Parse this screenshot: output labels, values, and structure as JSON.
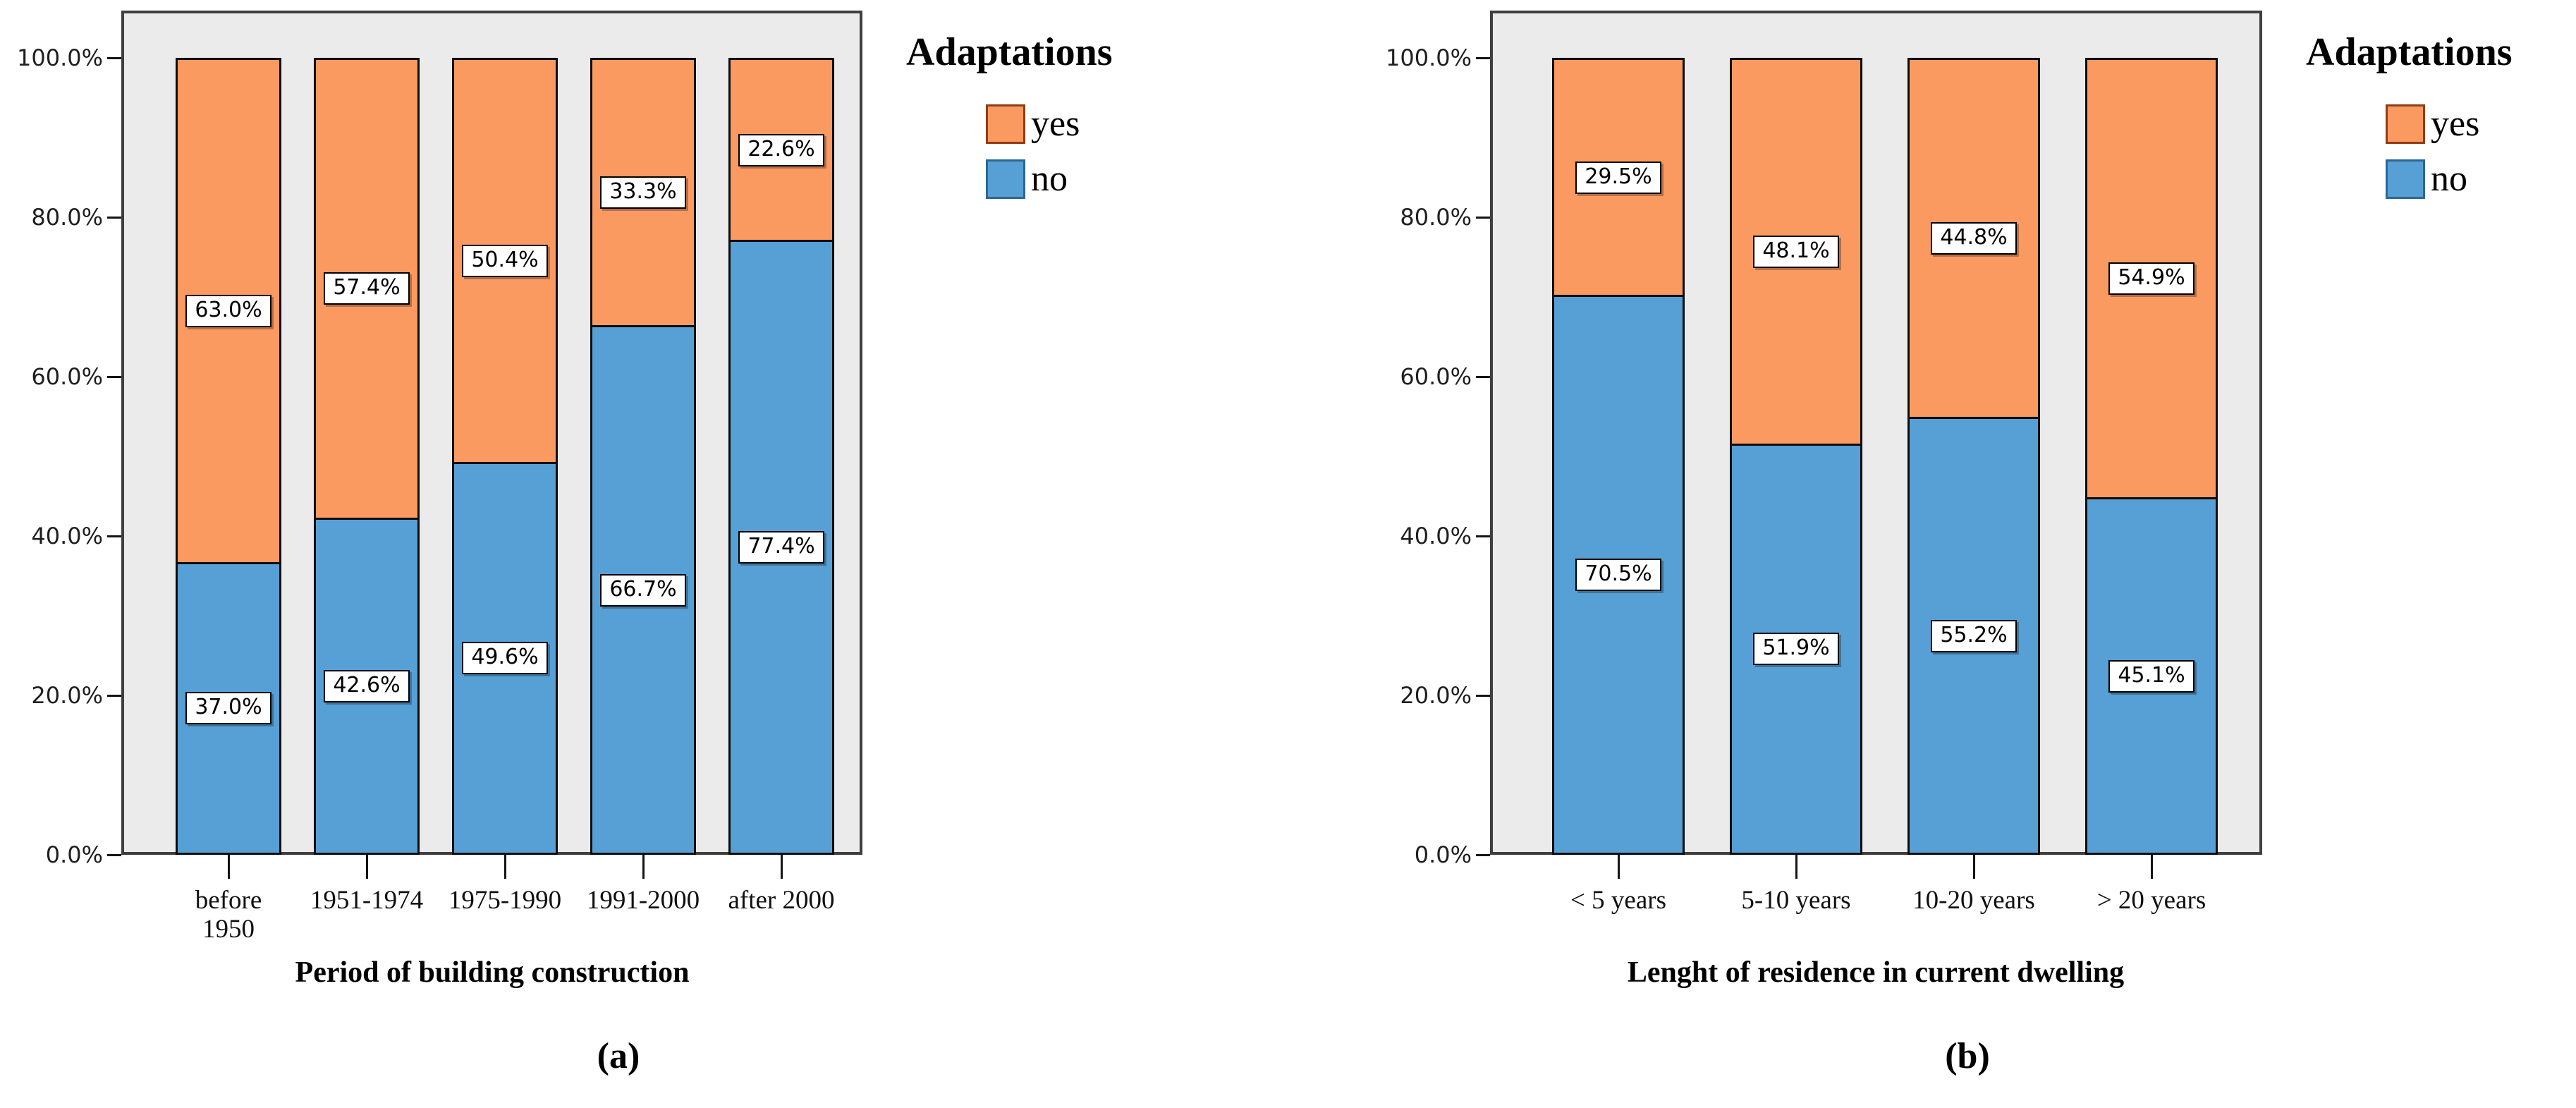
{
  "figure": {
    "background": "#FFFFFF"
  },
  "legend_shared": {
    "title": "Adaptations",
    "items": [
      "yes",
      "no"
    ]
  },
  "chart_data": [
    {
      "id": "a",
      "type": "bar",
      "stacked": true,
      "caption": "(a)",
      "title": "",
      "xlabel": "Period of building construction",
      "ylabel": "",
      "grid": false,
      "categories": [
        "before 1950",
        "1951-1974",
        "1975-1990",
        "1991-2000",
        "after 2000"
      ],
      "series": [
        {
          "name": "no",
          "color": "#57A0D6",
          "edge_color": "#2C6693",
          "values": [
            37.0,
            42.6,
            49.6,
            66.7,
            77.4
          ],
          "value_labels": [
            "37.0%",
            "42.6%",
            "49.6%",
            "66.7%",
            "77.4%"
          ]
        },
        {
          "name": "yes",
          "color": "#FB9A60",
          "edge_color": "#8F3C17",
          "values": [
            63.0,
            57.4,
            50.4,
            33.3,
            22.6
          ],
          "value_labels": [
            "63.0%",
            "57.4%",
            "50.4%",
            "33.3%",
            "22.6%"
          ]
        }
      ],
      "ylim": [
        0,
        100
      ],
      "y_tick_values": [
        0,
        20,
        40,
        60,
        80,
        100
      ],
      "y_tick_labels": [
        "0.0%",
        "20.0%",
        "40.0%",
        "60.0%",
        "80.0%",
        "100.0%"
      ],
      "legend": {
        "title": "Adaptations",
        "position": "top-right",
        "items": [
          {
            "label": "yes",
            "color": "#FB9A60",
            "edge_color": "#8F3C17"
          },
          {
            "label": "no",
            "color": "#57A0D6",
            "edge_color": "#2C6693"
          }
        ]
      }
    },
    {
      "id": "b",
      "type": "bar",
      "stacked": true,
      "caption": "(b)",
      "title": "",
      "xlabel": "Lenght of residence in current dwelling",
      "ylabel": "",
      "grid": false,
      "categories": [
        "< 5 years",
        "5-10 years",
        "10-20 years",
        "> 20 years"
      ],
      "series": [
        {
          "name": "no",
          "color": "#57A0D6",
          "edge_color": "#2C6693",
          "values": [
            70.5,
            51.9,
            55.2,
            45.1
          ],
          "value_labels": [
            "70.5%",
            "51.9%",
            "55.2%",
            "45.1%"
          ]
        },
        {
          "name": "yes",
          "color": "#FB9A60",
          "edge_color": "#8F3C17",
          "values": [
            29.5,
            48.1,
            44.8,
            54.9
          ],
          "value_labels": [
            "29.5%",
            "48.1%",
            "44.8%",
            "54.9%"
          ]
        }
      ],
      "ylim": [
        0,
        100
      ],
      "y_tick_values": [
        0,
        20,
        40,
        60,
        80,
        100
      ],
      "y_tick_labels": [
        "0.0%",
        "20.0%",
        "40.0%",
        "60.0%",
        "80.0%",
        "100.0%"
      ],
      "legend": {
        "title": "Adaptations",
        "position": "top-right",
        "items": [
          {
            "label": "yes",
            "color": "#FB9A60",
            "edge_color": "#8F3C17"
          },
          {
            "label": "no",
            "color": "#57A0D6",
            "edge_color": "#2C6693"
          }
        ]
      }
    }
  ]
}
